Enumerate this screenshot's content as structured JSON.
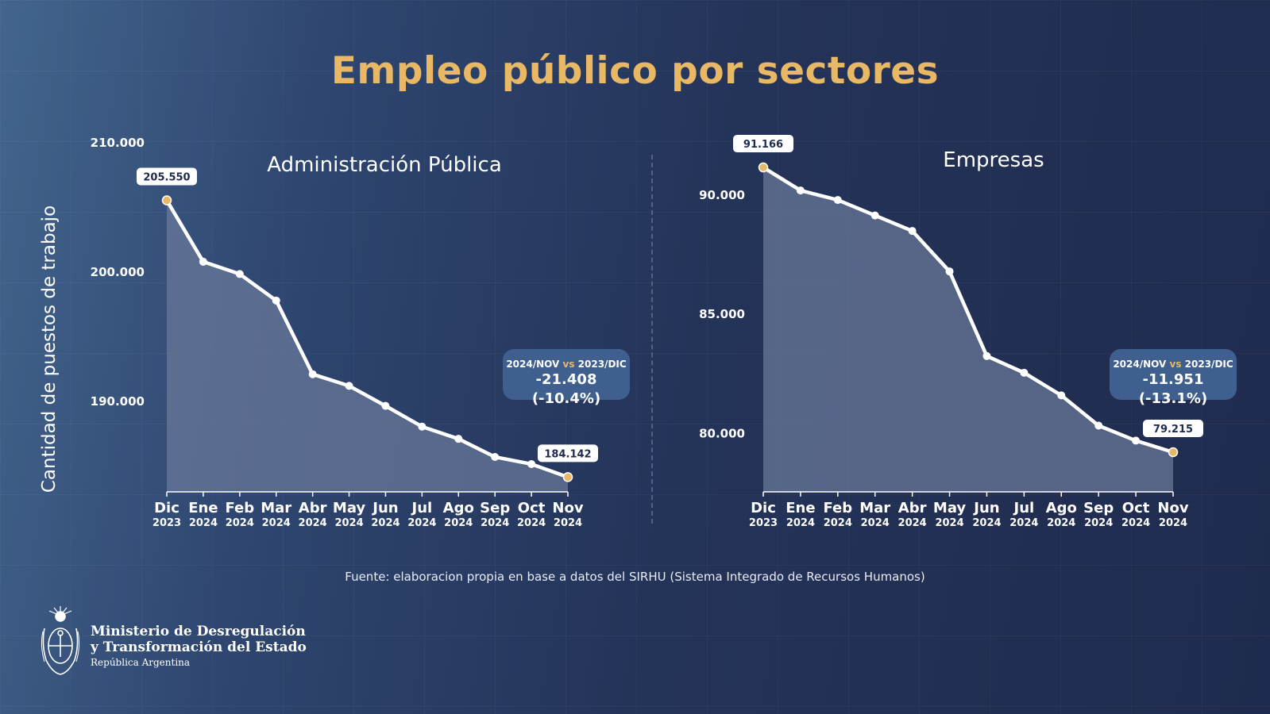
{
  "page": {
    "title": "Empleo público por sectores",
    "ylabel": "Cantidad de puestos de trabajo",
    "source": "Fuente: elaboracion propia en base a datos del SIRHU (Sistema Integrado de Recursos Humanos)",
    "colors": {
      "title": "#e8b865",
      "line": "#ffffff",
      "area": "#6b7a9a",
      "endpoint": "#e8b865",
      "badge": "#3f5f8e"
    }
  },
  "logo": {
    "line1": "Ministerio de Desregulación",
    "line2": "y Transformación del Estado",
    "line3": "República Argentina",
    "icon": "coat-of-arms-icon"
  },
  "chart_data": [
    {
      "type": "area",
      "title": "Administración Pública",
      "x_months": [
        "Dic",
        "Ene",
        "Feb",
        "Mar",
        "Abr",
        "May",
        "Jun",
        "Jul",
        "Ago",
        "Sep",
        "Oct",
        "Nov"
      ],
      "x_years": [
        "2023",
        "2024",
        "2024",
        "2024",
        "2024",
        "2024",
        "2024",
        "2024",
        "2024",
        "2024",
        "2024",
        "2024"
      ],
      "values": [
        205550,
        200800,
        199850,
        197800,
        192100,
        191200,
        189650,
        188050,
        187100,
        185700,
        185150,
        184142
      ],
      "ylim": [
        183000,
        210000
      ],
      "yticks": [
        190000,
        200000,
        210000
      ],
      "ytick_labels": [
        "190.000",
        "200.000",
        "210.000"
      ],
      "start_label": "205.550",
      "end_label": "184.142",
      "badge": {
        "period": "2024/NOV",
        "vs": "vs",
        "period_base": "2023/DIC",
        "value": "-21.408 (-10.4%)"
      }
    },
    {
      "type": "area",
      "title": "Empresas",
      "x_months": [
        "Dic",
        "Ene",
        "Feb",
        "Mar",
        "Abr",
        "May",
        "Jun",
        "Jul",
        "Ago",
        "Sep",
        "Oct",
        "Nov"
      ],
      "x_years": [
        "2023",
        "2024",
        "2024",
        "2024",
        "2024",
        "2024",
        "2024",
        "2024",
        "2024",
        "2024",
        "2024",
        "2024"
      ],
      "values": [
        91166,
        90200,
        89800,
        89150,
        88500,
        86800,
        83250,
        82550,
        81600,
        80330,
        79700,
        79215
      ],
      "ylim": [
        77550,
        92200
      ],
      "yticks": [
        80000,
        85000,
        90000
      ],
      "ytick_labels": [
        "80.000",
        "85.000",
        "90.000"
      ],
      "start_label": "91.166",
      "end_label": "79.215",
      "badge": {
        "period": "2024/NOV",
        "vs": "vs",
        "period_base": "2023/DIC",
        "value": "-11.951 (-13.1%)"
      }
    }
  ]
}
